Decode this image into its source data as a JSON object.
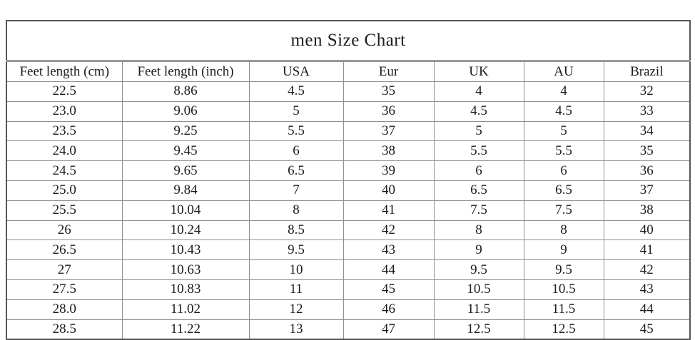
{
  "page": {
    "background_color": "#ffffff",
    "text_color": "#1c1c1c",
    "grid_border_color": "#8f8f8f",
    "outer_border_color": "#565656"
  },
  "chart_data": {
    "type": "table",
    "title": "men Size Chart",
    "columns": [
      "Feet length (cm)",
      "Feet length (inch)",
      "USA",
      "Eur",
      "UK",
      "AU",
      "Brazil"
    ],
    "rows": [
      [
        "22.5",
        "8.86",
        "4.5",
        "35",
        "4",
        "4",
        "32"
      ],
      [
        "23.0",
        "9.06",
        "5",
        "36",
        "4.5",
        "4.5",
        "33"
      ],
      [
        "23.5",
        "9.25",
        "5.5",
        "37",
        "5",
        "5",
        "34"
      ],
      [
        "24.0",
        "9.45",
        "6",
        "38",
        "5.5",
        "5.5",
        "35"
      ],
      [
        "24.5",
        "9.65",
        "6.5",
        "39",
        "6",
        "6",
        "36"
      ],
      [
        "25.0",
        "9.84",
        "7",
        "40",
        "6.5",
        "6.5",
        "37"
      ],
      [
        "25.5",
        "10.04",
        "8",
        "41",
        "7.5",
        "7.5",
        "38"
      ],
      [
        "26",
        "10.24",
        "8.5",
        "42",
        "8",
        "8",
        "40"
      ],
      [
        "26.5",
        "10.43",
        "9.5",
        "43",
        "9",
        "9",
        "41"
      ],
      [
        "27",
        "10.63",
        "10",
        "44",
        "9.5",
        "9.5",
        "42"
      ],
      [
        "27.5",
        "10.83",
        "11",
        "45",
        "10.5",
        "10.5",
        "43"
      ],
      [
        "28.0",
        "11.02",
        "12",
        "46",
        "11.5",
        "11.5",
        "44"
      ],
      [
        "28.5",
        "11.22",
        "13",
        "47",
        "12.5",
        "12.5",
        "45"
      ]
    ],
    "layout_hints": {
      "grid": "on",
      "all_cells_center_aligned": true
    }
  }
}
